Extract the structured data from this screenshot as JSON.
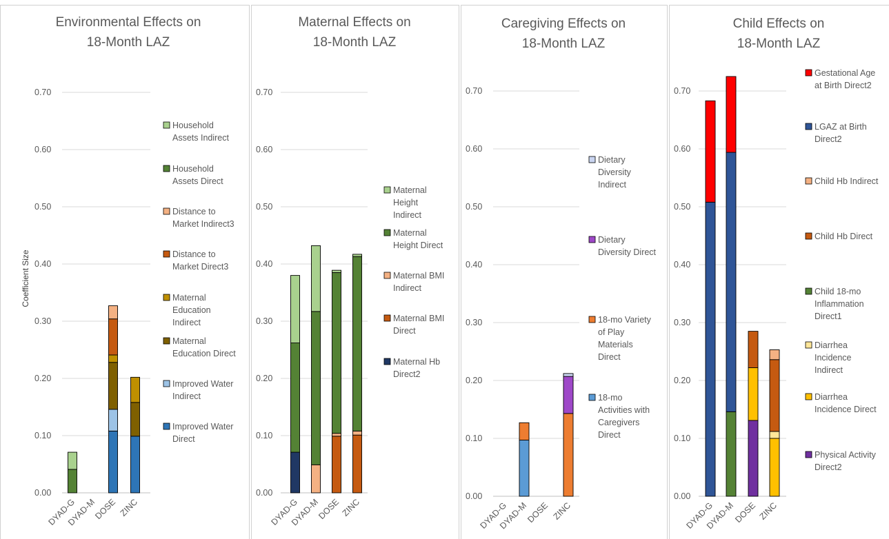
{
  "chart_data": [
    {
      "type": "bar",
      "stacked": true,
      "title": [
        "Environmental Effects on",
        "18-Month LAZ"
      ],
      "ylabel": "Coefficient Size",
      "ylim": [
        0,
        0.7
      ],
      "yticks": [
        "0.00",
        "0.10",
        "0.20",
        "0.30",
        "0.40",
        "0.50",
        "0.60",
        "0.70"
      ],
      "grid": true,
      "legend_position": "right",
      "categories": [
        "DYAD-G",
        "DYAD-M",
        "DOSE",
        "ZINC"
      ],
      "series": [
        {
          "name": [
            "Improved Water",
            "Direct"
          ],
          "color": "#2e75b6",
          "values": [
            0,
            0,
            0.108,
            0.099
          ]
        },
        {
          "name": [
            "Improved Water",
            "Indirect"
          ],
          "color": "#9dc3e6",
          "values": [
            0,
            0,
            0.038,
            0
          ]
        },
        {
          "name": [
            "Maternal",
            "Education Direct"
          ],
          "color": "#7f6000",
          "values": [
            0,
            0,
            0.082,
            0.059
          ]
        },
        {
          "name": [
            "Maternal",
            "Education",
            "Indirect"
          ],
          "color": "#bf9000",
          "values": [
            0,
            0,
            0.013,
            0.044
          ]
        },
        {
          "name": [
            "Distance to",
            "Market Direct3"
          ],
          "color": "#c55a11",
          "values": [
            0,
            0,
            0.063,
            0
          ]
        },
        {
          "name": [
            "Distance to",
            "Market Indirect3"
          ],
          "color": "#f4b183",
          "values": [
            0,
            0,
            0.023,
            0
          ]
        },
        {
          "name": [
            "Household",
            "Assets Direct"
          ],
          "color": "#548235",
          "values": [
            0.041,
            0,
            0,
            0
          ]
        },
        {
          "name": [
            "Household",
            "Assets Indirect"
          ],
          "color": "#a9d18e",
          "values": [
            0.03,
            0,
            0,
            0
          ]
        }
      ]
    },
    {
      "type": "bar",
      "stacked": true,
      "title": [
        "Maternal Effects on",
        "18-Month LAZ"
      ],
      "ylim": [
        0,
        0.7
      ],
      "yticks": [
        "0.00",
        "0.10",
        "0.20",
        "0.30",
        "0.40",
        "0.50",
        "0.60",
        "0.70"
      ],
      "grid": true,
      "legend_position": "right",
      "categories": [
        "DYAD-G",
        "DYAD-M",
        "DOSE",
        "ZINC"
      ],
      "series": [
        {
          "name": [
            "Maternal Hb",
            "Direct2"
          ],
          "color": "#203864",
          "values": [
            0.071,
            0,
            0,
            0
          ]
        },
        {
          "name": [
            "Maternal BMI",
            "Direct"
          ],
          "color": "#c55a11",
          "values": [
            0,
            0,
            0.099,
            0.101
          ]
        },
        {
          "name": [
            "Maternal BMI",
            "Indirect"
          ],
          "color": "#f4b183",
          "values": [
            0,
            0.049,
            0.005,
            0.007
          ]
        },
        {
          "name": [
            "Maternal",
            "Height Direct"
          ],
          "color": "#548235",
          "values": [
            0.191,
            0.268,
            0.281,
            0.305
          ]
        },
        {
          "name": [
            "Maternal",
            "Height",
            "Indirect"
          ],
          "color": "#a9d18e",
          "values": [
            0.118,
            0.115,
            0.004,
            0.004
          ]
        }
      ]
    },
    {
      "type": "bar",
      "stacked": true,
      "title": [
        "Caregiving Effects on",
        "18-Month LAZ"
      ],
      "ylim": [
        0,
        0.7
      ],
      "yticks": [
        "0.00",
        "0.10",
        "0.20",
        "0.30",
        "0.40",
        "0.50",
        "0.60",
        "0.70"
      ],
      "grid": true,
      "legend_position": "right",
      "categories": [
        "DYAD-G",
        "DYAD-M",
        "DOSE",
        "ZINC"
      ],
      "series": [
        {
          "name": [
            "18-mo",
            "Activities with",
            "Caregivers",
            "Direct"
          ],
          "color": "#5b9bd5",
          "values": [
            0,
            0.097,
            0,
            0
          ]
        },
        {
          "name": [
            "18-mo Variety",
            "of Play",
            "Materials",
            "Direct"
          ],
          "color": "#ed7d31",
          "values": [
            0,
            0.03,
            0,
            0.143
          ]
        },
        {
          "name": [
            "Dietary",
            "Diversity Direct"
          ],
          "color": "#9e48c8",
          "values": [
            0,
            0,
            0,
            0.064
          ]
        },
        {
          "name": [
            "Dietary",
            "Diversity",
            "Indirect"
          ],
          "color": "#c9d4f0",
          "values": [
            0,
            0,
            0,
            0.005
          ]
        }
      ]
    },
    {
      "type": "bar",
      "stacked": true,
      "title": [
        "Child Effects on",
        "18-Month LAZ"
      ],
      "ylim": [
        0,
        0.7
      ],
      "yticks": [
        "0.00",
        "0.10",
        "0.20",
        "0.30",
        "0.40",
        "0.50",
        "0.60",
        "0.70"
      ],
      "grid": true,
      "legend_position": "right",
      "categories": [
        "DYAD-G",
        "DYAD-M",
        "DOSE",
        "ZINC"
      ],
      "series": [
        {
          "name": [
            "Physical Activity",
            "Direct2"
          ],
          "color": "#7030a0",
          "values": [
            0,
            0,
            0.131,
            0
          ]
        },
        {
          "name": [
            "Diarrhea",
            "Incidence Direct"
          ],
          "color": "#ffc000",
          "values": [
            0,
            0,
            0.091,
            0.1
          ]
        },
        {
          "name": [
            "Diarrhea",
            "Incidence",
            "Indirect"
          ],
          "color": "#ffe699",
          "values": [
            0,
            0,
            0,
            0.012
          ]
        },
        {
          "name": [
            "Child 18-mo",
            "Inflammation",
            "Direct1"
          ],
          "color": "#548235",
          "values": [
            0,
            0.146,
            0,
            0
          ]
        },
        {
          "name": [
            "Child Hb Direct"
          ],
          "color": "#c55a11",
          "values": [
            0,
            0,
            0.063,
            0.124
          ]
        },
        {
          "name": [
            "Child Hb Indirect"
          ],
          "color": "#f4b183",
          "values": [
            0,
            0,
            0,
            0.017
          ]
        },
        {
          "name": [
            "LGAZ at Birth",
            "Direct2"
          ],
          "color": "#2f5597",
          "values": [
            0.508,
            0.448,
            0,
            0
          ]
        },
        {
          "name": [
            "Gestational Age",
            "at Birth Direct2"
          ],
          "color": "#ff0000",
          "values": [
            0.175,
            0.131,
            0,
            0
          ]
        }
      ]
    }
  ]
}
